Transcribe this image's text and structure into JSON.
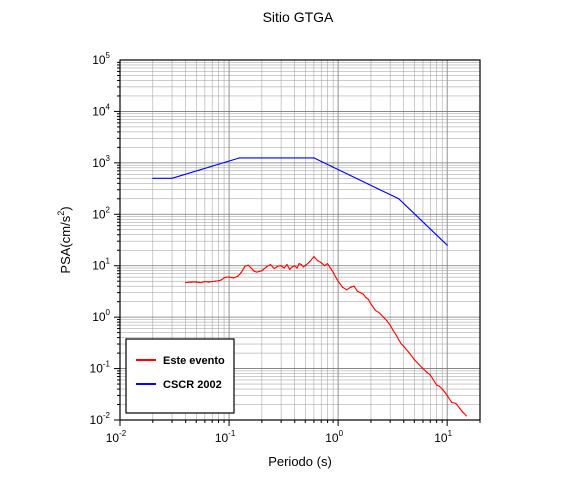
{
  "chart_data": {
    "type": "line",
    "title": "Sitio GTGA",
    "xlabel": "Periodo (s)",
    "ylabel_main": "PSA(cm/s",
    "ylabel_sup": "2",
    "ylabel_close": ")",
    "xscale": "log",
    "yscale": "log",
    "xlim": [
      0.01,
      20
    ],
    "ylim": [
      0.01,
      100000
    ],
    "grid": true,
    "legend_position": "lower-left",
    "x_ticks": [
      {
        "base": "10",
        "exp": "-2",
        "value": 0.01
      },
      {
        "base": "10",
        "exp": "-1",
        "value": 0.1
      },
      {
        "base": "10",
        "exp": "0",
        "value": 1
      },
      {
        "base": "10",
        "exp": "1",
        "value": 10
      }
    ],
    "y_ticks": [
      {
        "base": "10",
        "exp": "-2",
        "value": 0.01
      },
      {
        "base": "10",
        "exp": "-1",
        "value": 0.1
      },
      {
        "base": "10",
        "exp": "0",
        "value": 1
      },
      {
        "base": "10",
        "exp": "1",
        "value": 10
      },
      {
        "base": "10",
        "exp": "2",
        "value": 100
      },
      {
        "base": "10",
        "exp": "3",
        "value": 1000
      },
      {
        "base": "10",
        "exp": "4",
        "value": 10000
      },
      {
        "base": "10",
        "exp": "5",
        "value": 100000
      }
    ],
    "series": [
      {
        "name": "Este evento",
        "color": "#ff0000",
        "x": [
          0.04,
          0.045,
          0.05,
          0.055,
          0.06,
          0.065,
          0.07,
          0.075,
          0.08,
          0.085,
          0.09,
          0.095,
          0.1,
          0.11,
          0.12,
          0.13,
          0.14,
          0.15,
          0.16,
          0.17,
          0.18,
          0.19,
          0.2,
          0.22,
          0.24,
          0.26,
          0.28,
          0.3,
          0.32,
          0.34,
          0.36,
          0.38,
          0.4,
          0.42,
          0.44,
          0.46,
          0.48,
          0.5,
          0.55,
          0.6,
          0.65,
          0.7,
          0.75,
          0.8,
          0.85,
          0.9,
          0.95,
          1.0,
          1.1,
          1.2,
          1.3,
          1.4,
          1.5,
          1.6,
          1.7,
          1.8,
          1.9,
          2.0,
          2.2,
          2.4,
          2.6,
          2.8,
          3.0,
          3.2,
          3.4,
          3.6,
          3.8,
          4.0,
          4.5,
          5.0,
          5.5,
          6.0,
          6.5,
          7.0,
          7.5,
          8.0,
          8.5,
          9.0,
          9.5,
          10.0,
          11.0,
          12.0,
          13.0,
          14.0,
          15.0
        ],
        "y": [
          4.7,
          4.8,
          4.8,
          4.7,
          4.9,
          4.8,
          4.9,
          5.0,
          5.1,
          5.3,
          5.8,
          6.0,
          6.0,
          5.8,
          6.2,
          7.5,
          9.8,
          10.2,
          9.0,
          7.8,
          7.5,
          7.8,
          8.0,
          9.5,
          10.5,
          8.8,
          9.8,
          10.0,
          9.0,
          10.5,
          8.5,
          9.5,
          10.0,
          9.0,
          11.0,
          10.5,
          9.5,
          10.0,
          12.0,
          15.0,
          12.5,
          11.5,
          10.0,
          11.0,
          9.0,
          7.5,
          6.0,
          5.0,
          3.8,
          3.4,
          3.8,
          4.0,
          3.2,
          3.0,
          2.8,
          2.4,
          2.2,
          1.8,
          1.35,
          1.2,
          1.0,
          0.85,
          0.7,
          0.55,
          0.45,
          0.36,
          0.3,
          0.27,
          0.2,
          0.15,
          0.12,
          0.1,
          0.085,
          0.075,
          0.06,
          0.048,
          0.045,
          0.04,
          0.035,
          0.03,
          0.022,
          0.021,
          0.017,
          0.014,
          0.012
        ]
      },
      {
        "name": "CSCR 2002",
        "color": "#0000ff",
        "x": [
          0.02,
          0.03,
          0.125,
          0.6,
          3.6,
          10.0
        ],
        "y": [
          500,
          500,
          1250,
          1250,
          200,
          25
        ]
      }
    ]
  }
}
